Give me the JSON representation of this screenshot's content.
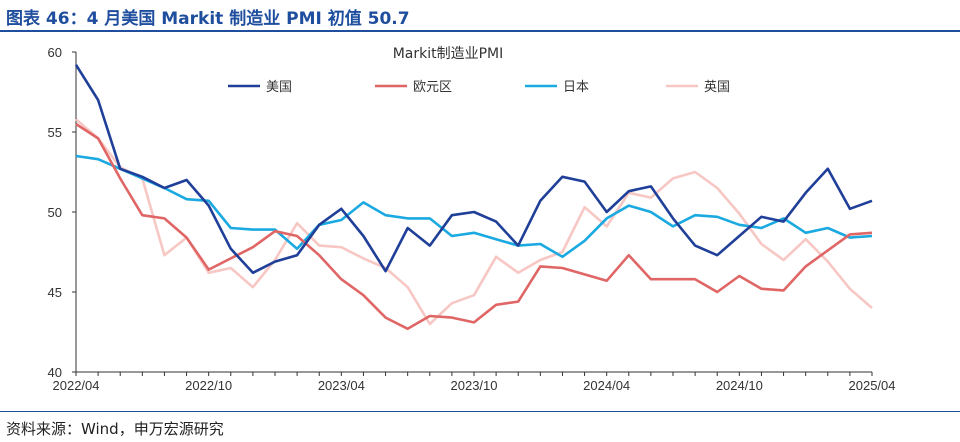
{
  "figure_title": "图表 46：4 月美国 Markit 制造业 PMI 初值 50.7",
  "source": "资料来源：Wind，申万宏源研究",
  "chart_data": {
    "type": "line",
    "title": "Markit制造业PMI",
    "xlabel": "",
    "ylabel": "",
    "ylim": [
      40,
      60
    ],
    "yticks": [
      40,
      45,
      50,
      55,
      60
    ],
    "x": [
      "2022/04",
      "2022/05",
      "2022/06",
      "2022/07",
      "2022/08",
      "2022/09",
      "2022/10",
      "2022/11",
      "2022/12",
      "2023/01",
      "2023/02",
      "2023/03",
      "2023/04",
      "2023/05",
      "2023/06",
      "2023/07",
      "2023/08",
      "2023/09",
      "2023/10",
      "2023/11",
      "2023/12",
      "2024/01",
      "2024/02",
      "2024/03",
      "2024/04",
      "2024/05",
      "2024/06",
      "2024/07",
      "2024/08",
      "2024/09",
      "2024/10",
      "2024/11",
      "2024/12",
      "2025/01",
      "2025/02",
      "2025/03",
      "2025/04"
    ],
    "xtick_labels": [
      "2022/04",
      "2022/10",
      "2023/04",
      "2023/10",
      "2024/04",
      "2024/10",
      "2025/04"
    ],
    "legend_position": "top",
    "grid": false,
    "series": [
      {
        "name": "美国",
        "color": "#1f3f99",
        "values": [
          59.2,
          57.0,
          52.7,
          52.2,
          51.5,
          52.0,
          50.4,
          47.7,
          46.2,
          46.9,
          47.3,
          49.2,
          50.2,
          48.5,
          46.3,
          49.0,
          47.9,
          49.8,
          50.0,
          49.4,
          47.9,
          50.7,
          52.2,
          51.9,
          50.0,
          51.3,
          51.6,
          49.6,
          47.9,
          47.3,
          48.5,
          49.7,
          49.4,
          51.2,
          52.7,
          50.2,
          50.7
        ]
      },
      {
        "name": "欧元区",
        "color": "#e06666",
        "values": [
          55.5,
          54.6,
          52.1,
          49.8,
          49.6,
          48.4,
          46.4,
          47.1,
          47.8,
          48.8,
          48.5,
          47.3,
          45.8,
          44.8,
          43.4,
          42.7,
          43.5,
          43.4,
          43.1,
          44.2,
          44.4,
          46.6,
          46.5,
          46.1,
          45.7,
          47.3,
          45.8,
          45.8,
          45.8,
          45.0,
          46.0,
          45.2,
          45.1,
          46.6,
          47.6,
          48.6,
          48.7
        ]
      },
      {
        "name": "日本",
        "color": "#1aa9e0",
        "values": [
          53.5,
          53.3,
          52.7,
          52.1,
          51.5,
          50.8,
          50.7,
          49.0,
          48.9,
          48.9,
          47.7,
          49.2,
          49.5,
          50.6,
          49.8,
          49.6,
          49.6,
          48.5,
          48.7,
          48.3,
          47.9,
          48.0,
          47.2,
          48.2,
          49.6,
          50.4,
          50.0,
          49.1,
          49.8,
          49.7,
          49.2,
          49.0,
          49.6,
          48.7,
          49.0,
          48.4,
          48.5
        ]
      },
      {
        "name": "英国",
        "color": "#f7c7c4",
        "values": [
          55.8,
          54.6,
          52.8,
          52.1,
          47.3,
          48.4,
          46.2,
          46.5,
          45.3,
          47.0,
          49.3,
          47.9,
          47.8,
          47.1,
          46.5,
          45.3,
          43.0,
          44.3,
          44.8,
          47.2,
          46.2,
          47.0,
          47.5,
          50.3,
          49.1,
          51.2,
          50.9,
          52.1,
          52.5,
          51.5,
          49.9,
          48.0,
          47.0,
          48.3,
          46.9,
          45.2,
          44.0
        ]
      }
    ]
  }
}
